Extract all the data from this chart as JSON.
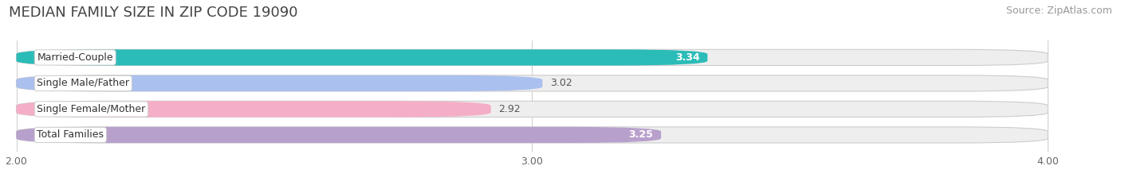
{
  "title": "MEDIAN FAMILY SIZE IN ZIP CODE 19090",
  "source": "Source: ZipAtlas.com",
  "categories": [
    "Married-Couple",
    "Single Male/Father",
    "Single Female/Mother",
    "Total Families"
  ],
  "values": [
    3.34,
    3.02,
    2.92,
    3.25
  ],
  "bar_colors": [
    "#2bbcb8",
    "#aac0ee",
    "#f5aec8",
    "#b8a0cc"
  ],
  "value_inside": [
    true,
    false,
    false,
    true
  ],
  "value_colors_inside": [
    "#ffffff",
    "#555555",
    "#555555",
    "#ffffff"
  ],
  "x_min": 2.0,
  "x_max": 4.0,
  "x_ticks": [
    2.0,
    3.0,
    4.0
  ],
  "background_color": "#ffffff",
  "bar_bg_color": "#eeeeee",
  "bar_border_color": "#cccccc",
  "title_fontsize": 13,
  "source_fontsize": 9,
  "label_fontsize": 9,
  "value_fontsize": 9
}
